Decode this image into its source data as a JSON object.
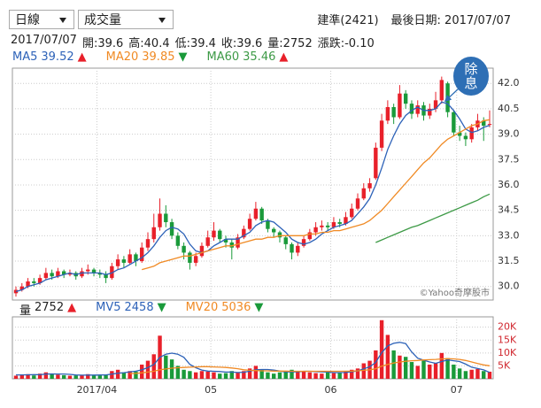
{
  "controls": [
    "日線",
    "成交量"
  ],
  "header": {
    "stock": "建準(2421)",
    "last_date": "最後日期: 2017/07/07"
  },
  "info": [
    "2017/07/07",
    "開:39.6",
    "高:40.4",
    "低:39.4",
    "收:39.6",
    "量:2752",
    "漲跌:-0.10"
  ],
  "chart_data": [
    {
      "type": "candlestick",
      "up_color": "#e8202a",
      "down_color": "#1a9a3a",
      "ylim": [
        29.2,
        42.9
      ],
      "yticks": [
        {
          "value": 30,
          "label": "30.0"
        },
        31.5,
        {
          "value": 33,
          "label": "33.0"
        },
        34.5,
        {
          "value": 36,
          "label": "36.0"
        },
        37.5,
        {
          "value": 39,
          "label": "39.0"
        },
        40.5,
        {
          "value": 42,
          "label": "42.0"
        }
      ],
      "grid": true,
      "annotation": "除息",
      "watermark": "©Yahoo奇摩股市",
      "ohlc": [
        [
          29.6,
          30.0,
          29.4,
          29.8
        ],
        [
          29.8,
          30.2,
          29.7,
          30.0
        ],
        [
          30.0,
          30.5,
          29.9,
          30.3
        ],
        [
          30.3,
          30.5,
          30.0,
          30.2
        ],
        [
          30.2,
          30.7,
          30.1,
          30.5
        ],
        [
          30.5,
          31.1,
          30.4,
          30.8
        ],
        [
          30.8,
          31.0,
          30.4,
          30.6
        ],
        [
          30.6,
          31.1,
          30.5,
          30.9
        ],
        [
          30.9,
          31.0,
          30.5,
          30.7
        ],
        [
          30.7,
          31.0,
          30.6,
          30.8
        ],
        [
          30.8,
          30.9,
          30.4,
          30.6
        ],
        [
          30.6,
          31.1,
          30.5,
          30.9
        ],
        [
          30.9,
          31.3,
          30.7,
          31.0
        ],
        [
          31.0,
          31.1,
          30.6,
          30.8
        ],
        [
          30.8,
          31.0,
          30.5,
          30.7
        ],
        [
          30.7,
          30.9,
          30.2,
          30.5
        ],
        [
          30.5,
          31.4,
          30.4,
          31.2
        ],
        [
          31.2,
          31.9,
          31.0,
          31.6
        ],
        [
          31.6,
          31.8,
          31.1,
          31.4
        ],
        [
          31.4,
          32.2,
          31.3,
          31.9
        ],
        [
          31.9,
          32.0,
          31.2,
          31.5
        ],
        [
          31.5,
          32.6,
          31.4,
          32.3
        ],
        [
          32.3,
          33.2,
          32.1,
          32.8
        ],
        [
          32.8,
          34.3,
          32.6,
          33.5
        ],
        [
          33.5,
          35.2,
          33.3,
          34.3
        ],
        [
          34.3,
          34.8,
          33.5,
          33.8
        ],
        [
          33.8,
          34.0,
          32.8,
          33.0
        ],
        [
          33.0,
          33.2,
          32.2,
          32.4
        ],
        [
          32.4,
          32.6,
          31.6,
          32.0
        ],
        [
          32.0,
          32.1,
          31.0,
          31.4
        ],
        [
          31.4,
          32.0,
          31.2,
          31.8
        ],
        [
          31.8,
          32.6,
          31.7,
          32.4
        ],
        [
          32.4,
          33.3,
          32.3,
          32.9
        ],
        [
          32.9,
          33.8,
          32.7,
          33.3
        ],
        [
          33.3,
          33.4,
          32.6,
          32.8
        ],
        [
          32.8,
          33.0,
          32.3,
          32.6
        ],
        [
          32.6,
          32.8,
          31.6,
          32.3
        ],
        [
          32.3,
          33.1,
          32.2,
          32.9
        ],
        [
          32.9,
          33.6,
          32.8,
          33.4
        ],
        [
          33.4,
          34.3,
          33.3,
          34.0
        ],
        [
          34.0,
          35.0,
          33.9,
          34.6
        ],
        [
          34.6,
          34.7,
          33.7,
          33.9
        ],
        [
          33.9,
          34.0,
          33.2,
          33.4
        ],
        [
          33.4,
          33.5,
          32.9,
          33.2
        ],
        [
          33.2,
          33.3,
          32.6,
          32.9
        ],
        [
          32.9,
          33.0,
          32.2,
          32.5
        ],
        [
          32.5,
          32.6,
          31.6,
          32.0
        ],
        [
          32.0,
          32.6,
          31.8,
          32.4
        ],
        [
          32.4,
          33.0,
          32.3,
          32.8
        ],
        [
          32.8,
          33.4,
          32.7,
          33.2
        ],
        [
          33.2,
          33.8,
          33.0,
          33.5
        ],
        [
          33.5,
          33.9,
          33.3,
          33.6
        ],
        [
          33.6,
          33.8,
          33.3,
          33.5
        ],
        [
          33.5,
          34.1,
          33.4,
          33.8
        ],
        [
          33.8,
          34.0,
          33.5,
          33.7
        ],
        [
          33.7,
          34.4,
          33.6,
          34.1
        ],
        [
          34.1,
          34.9,
          34.0,
          34.6
        ],
        [
          34.6,
          35.5,
          34.5,
          35.2
        ],
        [
          35.2,
          36.1,
          35.1,
          35.8
        ],
        [
          35.8,
          36.4,
          35.6,
          36.1
        ],
        [
          36.4,
          38.5,
          36.3,
          38.2
        ],
        [
          38.2,
          40.2,
          38.0,
          39.8
        ],
        [
          39.8,
          41.0,
          39.6,
          40.6
        ],
        [
          40.6,
          40.8,
          39.6,
          40.0
        ],
        [
          40.0,
          41.9,
          39.9,
          41.4
        ],
        [
          41.4,
          41.6,
          40.5,
          40.8
        ],
        [
          40.8,
          41.0,
          39.9,
          40.2
        ],
        [
          40.2,
          41.0,
          40.0,
          40.7
        ],
        [
          40.7,
          40.9,
          39.8,
          40.1
        ],
        [
          40.1,
          40.8,
          39.9,
          40.5
        ],
        [
          40.5,
          41.5,
          40.3,
          41.0
        ],
        [
          41.0,
          42.4,
          40.8,
          42.2
        ],
        [
          42.0,
          42.1,
          40.0,
          40.3
        ],
        [
          40.3,
          40.4,
          38.9,
          39.1
        ],
        [
          39.1,
          39.5,
          38.6,
          38.9
        ],
        [
          38.9,
          39.1,
          38.3,
          38.7
        ],
        [
          38.7,
          39.6,
          38.5,
          39.4
        ],
        [
          39.4,
          40.2,
          39.2,
          39.8
        ],
        [
          39.8,
          40.0,
          38.6,
          39.5
        ],
        [
          39.6,
          40.4,
          39.4,
          39.6
        ]
      ],
      "series": [
        {
          "name": "MA5",
          "color": "#2d62b8",
          "last": 39.52,
          "trend": "▲",
          "values": [
            29.7,
            29.8,
            30.0,
            30.1,
            30.2,
            30.4,
            30.5,
            30.6,
            30.7,
            30.8,
            30.7,
            30.8,
            30.8,
            30.8,
            30.8,
            30.7,
            30.8,
            31.0,
            31.1,
            31.3,
            31.5,
            31.7,
            32.0,
            32.4,
            32.9,
            33.3,
            33.5,
            33.4,
            33.1,
            32.5,
            32.1,
            32.0,
            32.1,
            32.4,
            32.6,
            32.8,
            32.8,
            32.8,
            33.0,
            33.2,
            33.6,
            33.8,
            33.9,
            33.8,
            33.5,
            33.2,
            32.8,
            32.6,
            32.5,
            32.6,
            32.8,
            33.1,
            33.3,
            33.5,
            33.6,
            33.7,
            33.9,
            34.3,
            34.7,
            35.2,
            36.0,
            37.0,
            38.1,
            38.9,
            39.6,
            40.1,
            40.4,
            40.6,
            40.4,
            40.4,
            40.5,
            40.9,
            40.8,
            40.4,
            39.9,
            39.3,
            39.1,
            39.2,
            39.4,
            39.52
          ]
        },
        {
          "name": "MA20",
          "color": "#f08a24",
          "last": 39.85,
          "trend": "▼",
          "values": [
            null,
            null,
            null,
            null,
            null,
            null,
            null,
            null,
            null,
            null,
            null,
            null,
            null,
            null,
            null,
            null,
            null,
            null,
            null,
            null,
            null,
            31.0,
            31.1,
            31.2,
            31.4,
            31.5,
            31.6,
            31.7,
            31.8,
            31.8,
            31.9,
            32.0,
            32.1,
            32.2,
            32.3,
            32.4,
            32.4,
            32.5,
            32.6,
            32.7,
            32.8,
            32.8,
            32.9,
            32.9,
            33.0,
            33.0,
            33.0,
            33.0,
            33.0,
            33.1,
            33.1,
            33.2,
            33.2,
            33.3,
            33.3,
            33.4,
            33.5,
            33.6,
            33.7,
            33.9,
            34.2,
            34.5,
            34.9,
            35.3,
            35.7,
            36.1,
            36.5,
            36.9,
            37.3,
            37.6,
            38.0,
            38.4,
            38.7,
            38.9,
            39.1,
            39.3,
            39.5,
            39.6,
            39.8,
            39.85
          ]
        },
        {
          "name": "MA60",
          "color": "#3d9a46",
          "last": 35.46,
          "trend": "▲",
          "values": [
            null,
            null,
            null,
            null,
            null,
            null,
            null,
            null,
            null,
            null,
            null,
            null,
            null,
            null,
            null,
            null,
            null,
            null,
            null,
            null,
            null,
            null,
            null,
            null,
            null,
            null,
            null,
            null,
            null,
            null,
            null,
            null,
            null,
            null,
            null,
            null,
            null,
            null,
            null,
            null,
            null,
            null,
            null,
            null,
            null,
            null,
            null,
            null,
            null,
            null,
            null,
            null,
            null,
            null,
            null,
            null,
            null,
            null,
            null,
            null,
            32.6,
            32.75,
            32.9,
            33.05,
            33.2,
            33.35,
            33.5,
            33.6,
            33.75,
            33.9,
            34.05,
            34.2,
            34.35,
            34.5,
            34.65,
            34.8,
            34.95,
            35.1,
            35.3,
            35.46
          ]
        }
      ]
    },
    {
      "type": "bar",
      "name": "量",
      "last": 2752,
      "trend": "▲",
      "ylim": [
        0,
        24000
      ],
      "yticks": [
        {
          "value": 5000,
          "label": "5K"
        },
        {
          "value": 10000,
          "label": "10K"
        },
        {
          "value": 15000,
          "label": "15K"
        },
        {
          "value": 20000,
          "label": "20K"
        }
      ],
      "categories": [
        null,
        null,
        null,
        null,
        null,
        null,
        null,
        null,
        null,
        null,
        null,
        null,
        null,
        null,
        "2017/04",
        null,
        null,
        null,
        null,
        null,
        null,
        null,
        null,
        null,
        null,
        null,
        null,
        null,
        null,
        null,
        null,
        null,
        null,
        "05",
        null,
        null,
        null,
        null,
        null,
        null,
        null,
        null,
        null,
        null,
        null,
        null,
        null,
        null,
        null,
        null,
        null,
        null,
        null,
        "06",
        null,
        null,
        null,
        null,
        null,
        null,
        null,
        null,
        null,
        null,
        null,
        null,
        null,
        null,
        null,
        null,
        null,
        null,
        null,
        null,
        "07",
        null,
        null,
        null,
        null,
        null
      ],
      "values": [
        1200,
        1500,
        1800,
        1300,
        2000,
        2500,
        1800,
        1600,
        1400,
        1200,
        1300,
        1500,
        1800,
        1400,
        1300,
        1600,
        3000,
        3500,
        2500,
        3000,
        2800,
        5500,
        7000,
        9500,
        16700,
        9000,
        7500,
        5000,
        3500,
        3000,
        2500,
        3000,
        2800,
        2500,
        2000,
        2200,
        3000,
        2500,
        3000,
        4000,
        5000,
        3500,
        2500,
        2000,
        2500,
        2800,
        3500,
        2800,
        3000,
        2500,
        2200,
        2000,
        2500,
        2200,
        2500,
        3000,
        3500,
        4000,
        6000,
        7000,
        11000,
        22700,
        17000,
        11000,
        9000,
        8500,
        6500,
        5000,
        7000,
        5500,
        6000,
        10000,
        8000,
        5500,
        4000,
        3000,
        3500,
        3800,
        3000,
        2752
      ],
      "series": [
        {
          "name": "MV5",
          "color": "#2d62b8",
          "last": 2458,
          "trend": "▼",
          "values": [
            1500,
            1500,
            1550,
            1600,
            1560,
            1820,
            1880,
            1840,
            1860,
            1700,
            1460,
            1400,
            1440,
            1440,
            1460,
            1520,
            1820,
            2160,
            2380,
            2720,
            2960,
            3460,
            4360,
            5560,
            8300,
            9540,
            9940,
            9540,
            8340,
            5600,
            4300,
            3400,
            3000,
            2900,
            2800,
            2600,
            2600,
            2440,
            2540,
            2940,
            3500,
            3600,
            3600,
            3400,
            3000,
            2660,
            2660,
            2720,
            2920,
            2920,
            2800,
            2660,
            2600,
            2400,
            2400,
            2440,
            2740,
            3040,
            3840,
            4700,
            6300,
            10140,
            12740,
            13740,
            14140,
            13640,
            10400,
            8000,
            7200,
            6500,
            6000,
            6700,
            7300,
            7000,
            6700,
            5700,
            4500,
            3960,
            3460,
            2458
          ]
        },
        {
          "name": "MV20",
          "color": "#f08a24",
          "last": 5036,
          "trend": "▼",
          "values": [
            null,
            null,
            null,
            null,
            null,
            null,
            null,
            null,
            null,
            null,
            null,
            null,
            null,
            null,
            null,
            null,
            null,
            null,
            null,
            2000,
            2100,
            2300,
            2600,
            2900,
            3500,
            3800,
            4100,
            4300,
            4400,
            4500,
            4600,
            4700,
            4700,
            4600,
            4500,
            4400,
            4200,
            3900,
            3500,
            3300,
            3200,
            3100,
            3100,
            3000,
            3000,
            3000,
            2900,
            2900,
            2900,
            2900,
            2900,
            2900,
            2900,
            2900,
            2900,
            2950,
            3000,
            3100,
            3300,
            3500,
            3900,
            4900,
            5600,
            6100,
            6500,
            6800,
            7000,
            7100,
            7300,
            7400,
            7500,
            7700,
            7800,
            7700,
            7500,
            7100,
            6500,
            5900,
            5400,
            5036
          ]
        }
      ]
    }
  ]
}
